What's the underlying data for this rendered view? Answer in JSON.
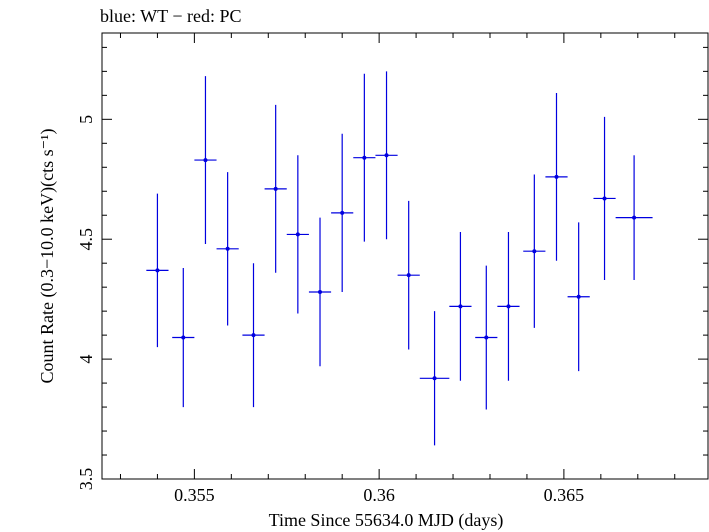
{
  "chart_data": {
    "type": "scatter",
    "title": "blue: WT − red: PC",
    "xlabel": "Time Since 55634.0 MJD (days)",
    "ylabel": "Count Rate (0.3−10.0 keV)(cts s⁻¹)",
    "xlim": [
      0.3525,
      0.3689
    ],
    "ylim": [
      3.5,
      5.36
    ],
    "x_ticks": [
      0.355,
      0.36,
      0.365
    ],
    "x_tick_labels": [
      "0.355",
      "0.36",
      "0.365"
    ],
    "y_ticks": [
      3.5,
      4,
      4.5,
      5
    ],
    "y_tick_labels": [
      "3.5",
      "4",
      "4.5",
      "5"
    ],
    "grid": false,
    "legend": "none",
    "series": [
      {
        "color": "#0000e0",
        "x": [
          0.354,
          0.3547,
          0.3553,
          0.3559,
          0.3566,
          0.3572,
          0.3578,
          0.3584,
          0.359,
          0.3596,
          0.3602,
          0.3608,
          0.3615,
          0.3622,
          0.3629,
          0.3635,
          0.3642,
          0.3648,
          0.3654,
          0.3661,
          0.3669
        ],
        "x_err": [
          0.0003,
          0.0003,
          0.0003,
          0.0003,
          0.0003,
          0.0003,
          0.0003,
          0.0003,
          0.0003,
          0.0003,
          0.0003,
          0.0003,
          0.0004,
          0.0003,
          0.0003,
          0.0003,
          0.0003,
          0.0003,
          0.0003,
          0.0003,
          0.0005
        ],
        "y": [
          4.37,
          4.09,
          4.83,
          4.46,
          4.1,
          4.71,
          4.52,
          4.28,
          4.61,
          4.84,
          4.85,
          4.35,
          3.92,
          4.22,
          4.09,
          4.22,
          4.45,
          4.76,
          4.26,
          4.67,
          4.59
        ],
        "y_err": [
          0.32,
          0.29,
          0.35,
          0.32,
          0.3,
          0.35,
          0.33,
          0.31,
          0.33,
          0.35,
          0.35,
          0.31,
          0.28,
          0.31,
          0.3,
          0.31,
          0.32,
          0.35,
          0.31,
          0.34,
          0.26
        ]
      }
    ]
  }
}
